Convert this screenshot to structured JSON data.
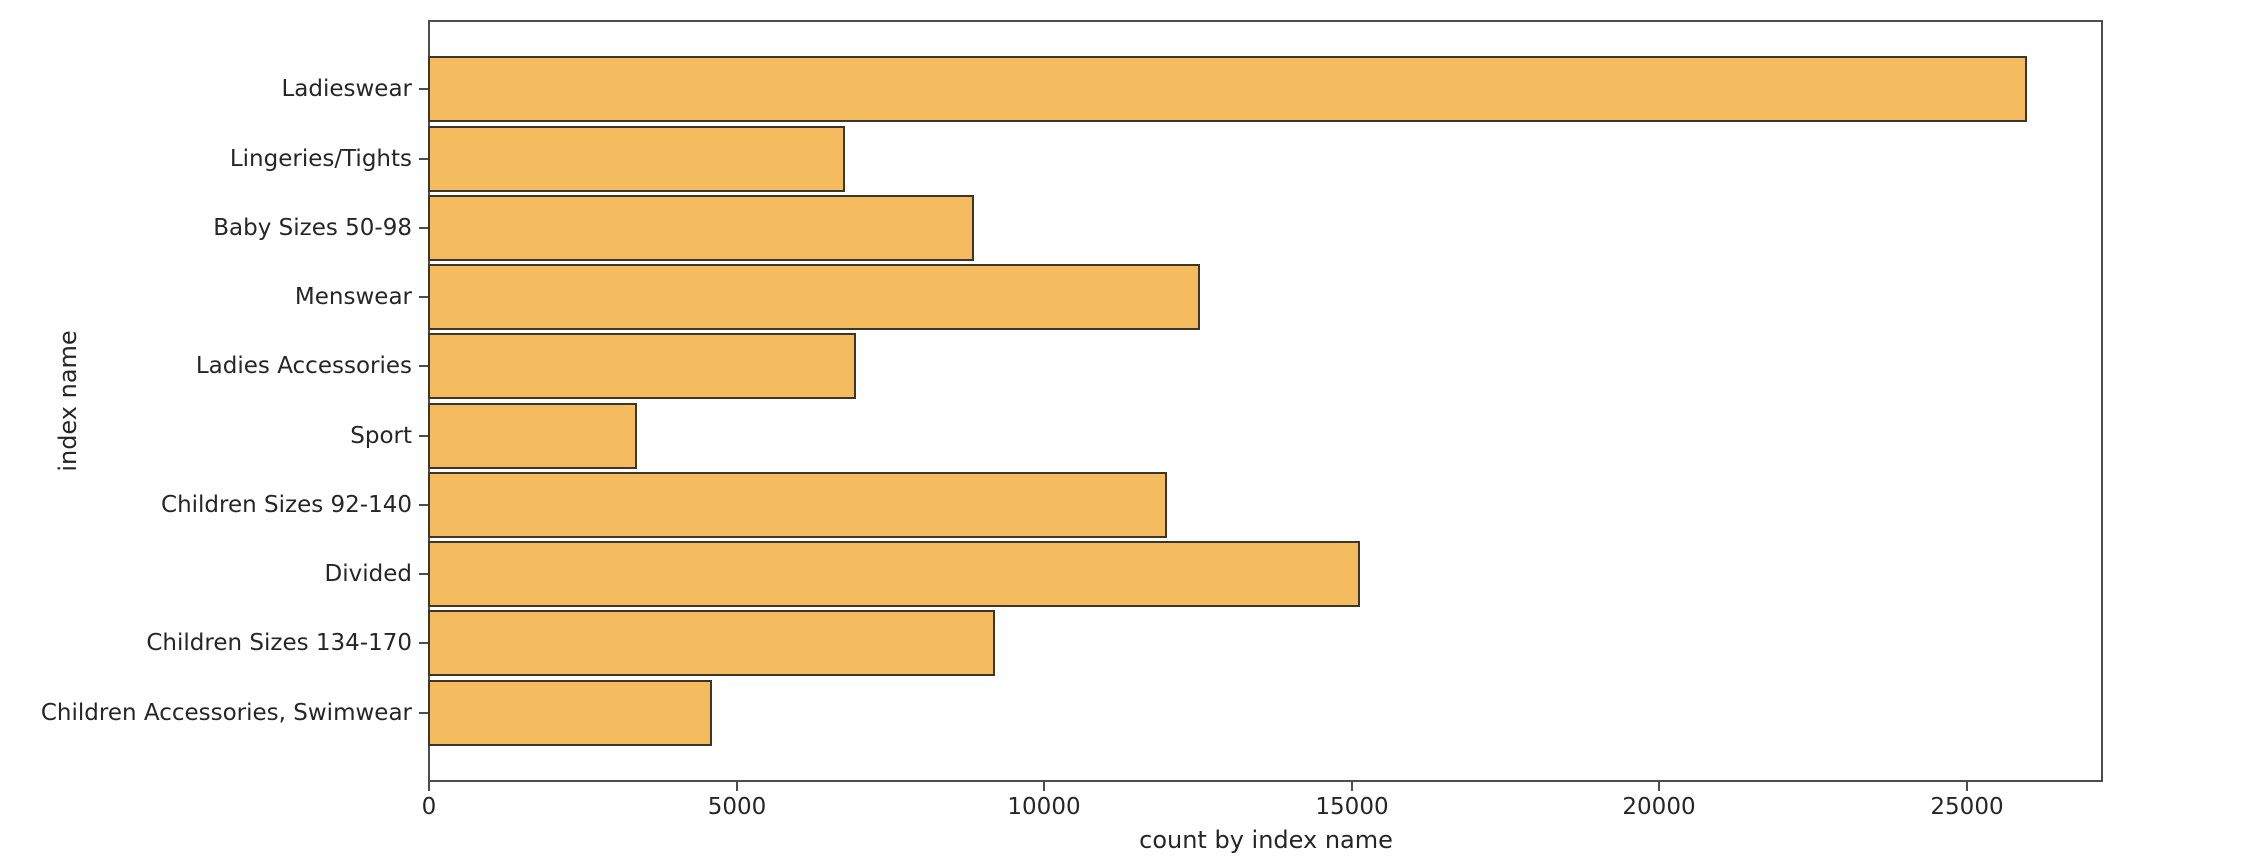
{
  "chart_data": {
    "type": "bar",
    "orientation": "horizontal",
    "title": "",
    "xlabel": "count by index name",
    "ylabel": "index name",
    "categories": [
      "Ladieswear",
      "Lingeries/Tights",
      "Baby Sizes 50-98",
      "Menswear",
      "Ladies Accessories",
      "Sport",
      "Children Sizes 92-140",
      "Divided",
      "Children Sizes 134-170",
      "Children Accessories, Swimwear"
    ],
    "values": [
      26001,
      6775,
      8875,
      12553,
      6961,
      3392,
      12007,
      15149,
      9214,
      4615
    ],
    "xticks": [
      0,
      5000,
      10000,
      15000,
      20000,
      25000
    ],
    "xtick_labels": [
      "0",
      "5000",
      "10000",
      "15000",
      "20000",
      "25000"
    ],
    "xlim": [
      0,
      27230
    ],
    "grid": false,
    "legend": false,
    "bar_color": "#f5bc5f",
    "bar_edge_color": "#3b352a",
    "spine_color": "#4d4d4d",
    "text_color": "#262626",
    "background_color": "#ffffff"
  }
}
